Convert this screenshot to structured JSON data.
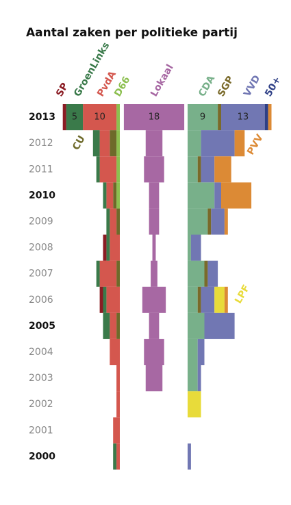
{
  "chart_data": {
    "type": "stacked-butterfly-bar",
    "title": "Aantal zaken per politieke partij",
    "categories": [
      "2013",
      "2012",
      "2011",
      "2010",
      "2009",
      "2008",
      "2007",
      "2006",
      "2005",
      "2004",
      "2003",
      "2002",
      "2001",
      "2000"
    ],
    "bold_categories": [
      "2013",
      "2010",
      "2005",
      "2000"
    ],
    "series": [
      {
        "name": "SP",
        "group": "left",
        "color": "#8b1c24",
        "values": [
          1,
          0,
          0,
          0,
          0,
          1,
          0,
          1,
          0,
          0,
          0,
          0,
          0,
          0
        ]
      },
      {
        "name": "GroenLinks",
        "group": "left",
        "color": "#3a7a4a",
        "values": [
          5,
          2,
          1,
          1,
          1,
          1,
          1,
          1,
          2,
          0,
          0,
          0,
          0,
          1
        ]
      },
      {
        "name": "PvdA",
        "group": "left",
        "color": "#d4574e",
        "values": [
          10,
          3,
          5,
          2,
          2,
          3,
          5,
          4,
          2,
          3,
          1,
          1,
          2,
          1
        ]
      },
      {
        "name": "CU",
        "group": "left",
        "color": "#6e6a2a",
        "values": [
          0,
          2,
          0,
          1,
          1,
          0,
          1,
          0,
          1,
          0,
          0,
          0,
          0,
          0
        ]
      },
      {
        "name": "D66",
        "group": "left",
        "color": "#8cbf4f",
        "values": [
          1,
          1,
          1,
          1,
          0,
          0,
          0,
          0,
          0,
          0,
          0,
          0,
          0,
          0
        ]
      },
      {
        "name": "Lokaal",
        "group": "center",
        "color": "#a768a3",
        "values": [
          18,
          5,
          6,
          3,
          3,
          1,
          2,
          7,
          3,
          6,
          5,
          0,
          0,
          0
        ]
      },
      {
        "name": "CDA",
        "group": "right",
        "color": "#78b08a",
        "values": [
          9,
          4,
          3,
          8,
          6,
          1,
          5,
          3,
          5,
          3,
          3,
          0,
          0,
          0
        ]
      },
      {
        "name": "SGP",
        "group": "right",
        "color": "#7a6a2a",
        "values": [
          1,
          0,
          1,
          0,
          1,
          0,
          1,
          1,
          0,
          0,
          0,
          0,
          0,
          0
        ]
      },
      {
        "name": "VVD",
        "group": "right",
        "color": "#7177b3",
        "values": [
          13,
          10,
          4,
          2,
          4,
          3,
          3,
          4,
          9,
          2,
          1,
          0,
          0,
          1
        ]
      },
      {
        "name": "50+",
        "group": "right",
        "color": "#2e3f86",
        "values": [
          1,
          0,
          0,
          0,
          0,
          0,
          0,
          0,
          0,
          0,
          0,
          0,
          0,
          0
        ]
      },
      {
        "name": "LPF",
        "group": "right",
        "color": "#e8db3a",
        "values": [
          0,
          0,
          0,
          0,
          0,
          0,
          0,
          3,
          0,
          0,
          0,
          4,
          0,
          0
        ]
      },
      {
        "name": "PVV",
        "group": "right",
        "color": "#dc8a35",
        "values": [
          1,
          3,
          5,
          9,
          1,
          0,
          0,
          1,
          0,
          0,
          0,
          0,
          0,
          0
        ]
      }
    ]
  }
}
